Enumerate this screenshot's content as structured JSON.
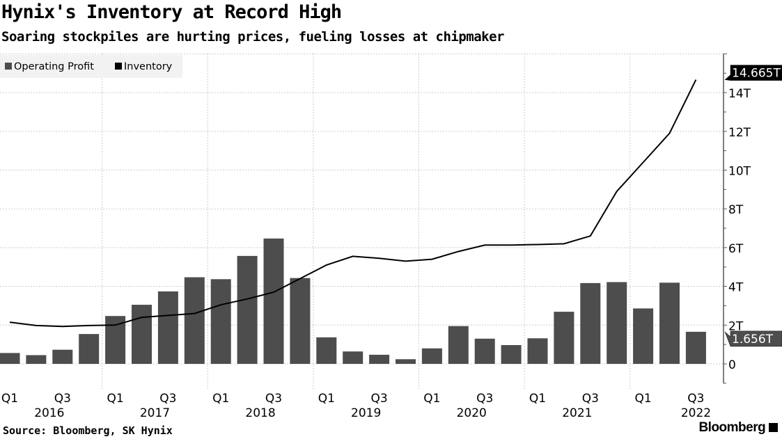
{
  "title": "Hynix's Inventory at Record High",
  "subtitle": "Soaring stockpiles are hurting prices, fueling losses at chipmaker",
  "source": "Source: Bloomberg, SK Hynix",
  "brand": "Bloomberg",
  "colors": {
    "bar": "#4d4d4d",
    "line": "#000000",
    "grid": "#cccccc"
  },
  "chart_data": {
    "type": "bar+line",
    "categories": [
      "Q1 2016",
      "Q2 2016",
      "Q3 2016",
      "Q4 2016",
      "Q1 2017",
      "Q2 2017",
      "Q3 2017",
      "Q4 2017",
      "Q1 2018",
      "Q2 2018",
      "Q3 2018",
      "Q4 2018",
      "Q1 2019",
      "Q2 2019",
      "Q3 2019",
      "Q4 2019",
      "Q1 2020",
      "Q2 2020",
      "Q3 2020",
      "Q4 2020",
      "Q1 2021",
      "Q2 2021",
      "Q3 2021",
      "Q4 2021",
      "Q1 2022",
      "Q2 2022",
      "Q3 2022"
    ],
    "series": [
      {
        "name": "Operating Profit",
        "type": "bar",
        "values": [
          0.56,
          0.45,
          0.73,
          1.54,
          2.47,
          3.05,
          3.74,
          4.47,
          4.37,
          5.57,
          6.47,
          4.43,
          1.37,
          0.64,
          0.47,
          0.24,
          0.8,
          1.95,
          1.3,
          0.97,
          1.32,
          2.69,
          4.17,
          4.22,
          2.86,
          4.19,
          1.656
        ]
      },
      {
        "name": "Inventory",
        "type": "line",
        "values": [
          2.15,
          1.98,
          1.93,
          1.98,
          2.0,
          2.4,
          2.5,
          2.6,
          3.05,
          3.35,
          3.7,
          4.4,
          5.1,
          5.55,
          5.45,
          5.3,
          5.4,
          5.8,
          6.13,
          6.13,
          6.16,
          6.2,
          6.6,
          8.9,
          10.4,
          11.9,
          14.665
        ]
      }
    ],
    "ylim": [
      -1,
      16
    ],
    "yticks": [
      0,
      2,
      4,
      6,
      8,
      10,
      12,
      14
    ],
    "ytick_labels": [
      "0",
      "2T",
      "4T",
      "6T",
      "8T",
      "10T",
      "12T",
      "14T"
    ],
    "x_tick_labels": [
      {
        "q": "Q1",
        "i": 0
      },
      {
        "q": "Q3",
        "i": 2
      },
      {
        "q": "Q1",
        "i": 4
      },
      {
        "q": "Q3",
        "i": 6
      },
      {
        "q": "Q1",
        "i": 8
      },
      {
        "q": "Q3",
        "i": 10
      },
      {
        "q": "Q1",
        "i": 12
      },
      {
        "q": "Q3",
        "i": 14
      },
      {
        "q": "Q1",
        "i": 16
      },
      {
        "q": "Q3",
        "i": 18
      },
      {
        "q": "Q1",
        "i": 20
      },
      {
        "q": "Q3",
        "i": 22
      },
      {
        "q": "Q1",
        "i": 24
      },
      {
        "q": "Q3",
        "i": 26
      }
    ],
    "years": [
      "2016",
      "2017",
      "2018",
      "2019",
      "2020",
      "2021",
      "2022"
    ],
    "last_value_labels": {
      "inventory": "14.665T",
      "operating_profit": "1.656T"
    },
    "legend": [
      "Operating Profit",
      "Inventory"
    ],
    "legend_position": "top-left",
    "grid": true
  }
}
